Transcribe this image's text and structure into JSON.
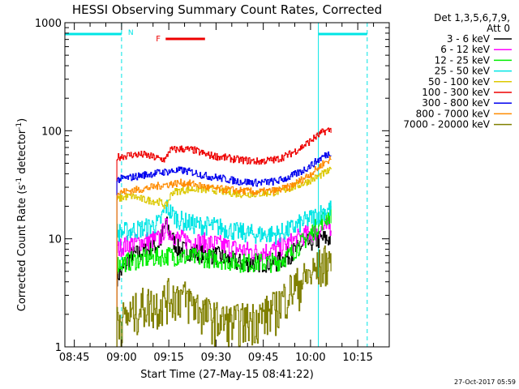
{
  "chart_data": {
    "type": "line",
    "title": "HESSI Observing Summary Count Rates, Corrected",
    "xlabel": "Start Time (27-May-15 08:41:22)",
    "ylabel_main": "Corrected Count Rate (s",
    "ylabel_sup1": "-1",
    "ylabel_mid": " detector",
    "ylabel_sup2": "-1",
    "ylabel_end": ")",
    "yscale": "log",
    "ylim": [
      1,
      1000
    ],
    "xlim_minutes": [
      -3,
      100
    ],
    "x_ticks": [
      {
        "m": 0,
        "label": "08:45"
      },
      {
        "m": 15,
        "label": "09:00"
      },
      {
        "m": 30,
        "label": "09:15"
      },
      {
        "m": 45,
        "label": "09:30"
      },
      {
        "m": 60,
        "label": "09:45"
      },
      {
        "m": 75,
        "label": "10:00"
      },
      {
        "m": 90,
        "label": "10:15"
      }
    ],
    "y_ticks": [
      {
        "v": 1,
        "label": "1"
      },
      {
        "v": 10,
        "label": "10"
      },
      {
        "v": 100,
        "label": "100"
      },
      {
        "v": 1000,
        "label": "1000"
      }
    ],
    "legend": {
      "header1": "Det 1,3,5,6,7,9,",
      "header2": "Att 0",
      "placement": "right"
    },
    "markers": {
      "night_label": "N",
      "flare_label": "F",
      "night_spans": [
        [
          -3,
          15
        ],
        [
          77.5,
          93
        ]
      ],
      "flare_span": [
        29,
        41.5
      ],
      "night_lines_solid": [
        -3,
        77.5
      ],
      "night_lines_dashed": [
        15,
        93
      ]
    },
    "colors": {
      "cyan": "#00e5e5",
      "flare": "#ee0000"
    },
    "data_start_minute": 13.5,
    "data_end_minute": 81.5,
    "series": [
      {
        "name": "3 - 6 keV",
        "color": "#000000",
        "points": [
          [
            13.5,
            4.5
          ],
          [
            15,
            5
          ],
          [
            18,
            7
          ],
          [
            22,
            7.5
          ],
          [
            27,
            9
          ],
          [
            29,
            14
          ],
          [
            31,
            10
          ],
          [
            33,
            8
          ],
          [
            38,
            7.5
          ],
          [
            45,
            7
          ],
          [
            52,
            6
          ],
          [
            58,
            6
          ],
          [
            64,
            6
          ],
          [
            68,
            7
          ],
          [
            72,
            8.5
          ],
          [
            76,
            9.5
          ],
          [
            79,
            10
          ],
          [
            81.5,
            10
          ]
        ]
      },
      {
        "name": "6 - 12 keV",
        "color": "#ff00ff",
        "points": [
          [
            13.5,
            8
          ],
          [
            15,
            8.5
          ],
          [
            18,
            9
          ],
          [
            22,
            9.5
          ],
          [
            27,
            10
          ],
          [
            29,
            13
          ],
          [
            31,
            11
          ],
          [
            33,
            10
          ],
          [
            38,
            9.5
          ],
          [
            45,
            9
          ],
          [
            52,
            8
          ],
          [
            58,
            7.5
          ],
          [
            64,
            8
          ],
          [
            68,
            9
          ],
          [
            72,
            10.5
          ],
          [
            76,
            11.5
          ],
          [
            79,
            12.5
          ],
          [
            81.5,
            13
          ]
        ]
      },
      {
        "name": "12 - 25 keV",
        "color": "#00ee00",
        "points": [
          [
            13.5,
            5.8
          ],
          [
            15,
            6
          ],
          [
            18,
            6.2
          ],
          [
            22,
            6.5
          ],
          [
            27,
            6.8
          ],
          [
            30,
            7
          ],
          [
            33,
            6.8
          ],
          [
            38,
            6.7
          ],
          [
            45,
            6.5
          ],
          [
            52,
            6
          ],
          [
            58,
            6
          ],
          [
            64,
            6
          ],
          [
            68,
            7
          ],
          [
            72,
            9
          ],
          [
            76,
            12
          ],
          [
            79,
            15
          ],
          [
            81.5,
            17
          ]
        ]
      },
      {
        "name": "25 - 50 keV",
        "color": "#00e5e5",
        "points": [
          [
            13.5,
            11.5
          ],
          [
            15,
            11.5
          ],
          [
            18,
            12
          ],
          [
            22,
            12.5
          ],
          [
            27,
            14
          ],
          [
            29,
            20
          ],
          [
            31,
            17
          ],
          [
            33,
            15
          ],
          [
            38,
            13.5
          ],
          [
            45,
            13
          ],
          [
            52,
            11.5
          ],
          [
            58,
            11
          ],
          [
            64,
            11
          ],
          [
            68,
            12
          ],
          [
            72,
            14
          ],
          [
            76,
            16
          ],
          [
            79,
            18
          ],
          [
            81.5,
            19
          ]
        ]
      },
      {
        "name": "50 - 100 keV",
        "color": "#dcc800",
        "points": [
          [
            13.5,
            23
          ],
          [
            15,
            24
          ],
          [
            18,
            25
          ],
          [
            22,
            23
          ],
          [
            27,
            22
          ],
          [
            29,
            20
          ],
          [
            31,
            27
          ],
          [
            34,
            28
          ],
          [
            38,
            29
          ],
          [
            45,
            28
          ],
          [
            52,
            26
          ],
          [
            58,
            26
          ],
          [
            64,
            27
          ],
          [
            68,
            29
          ],
          [
            72,
            32
          ],
          [
            76,
            36
          ],
          [
            79,
            40
          ],
          [
            81.5,
            43
          ]
        ]
      },
      {
        "name": "100 - 300 keV",
        "color": "#ee0000",
        "points": [
          [
            13.5,
            57
          ],
          [
            15,
            58
          ],
          [
            18,
            60
          ],
          [
            22,
            60
          ],
          [
            27,
            55
          ],
          [
            29,
            54
          ],
          [
            30,
            66
          ],
          [
            34,
            68
          ],
          [
            38,
            66
          ],
          [
            42,
            60
          ],
          [
            45,
            58
          ],
          [
            52,
            54
          ],
          [
            58,
            52
          ],
          [
            64,
            54
          ],
          [
            68,
            60
          ],
          [
            72,
            70
          ],
          [
            76,
            85
          ],
          [
            79,
            98
          ],
          [
            81.5,
            103
          ]
        ]
      },
      {
        "name": "300 - 800 keV",
        "color": "#0000ee",
        "points": [
          [
            13.5,
            35
          ],
          [
            15,
            36
          ],
          [
            18,
            37
          ],
          [
            22,
            39
          ],
          [
            27,
            41
          ],
          [
            30,
            42
          ],
          [
            34,
            43
          ],
          [
            38,
            41
          ],
          [
            42,
            38
          ],
          [
            45,
            37
          ],
          [
            52,
            34
          ],
          [
            58,
            33
          ],
          [
            64,
            34
          ],
          [
            68,
            37
          ],
          [
            72,
            42
          ],
          [
            76,
            50
          ],
          [
            79,
            58
          ],
          [
            81.5,
            63
          ]
        ]
      },
      {
        "name": "800 - 7000 keV",
        "color": "#ff8c00",
        "points": [
          [
            13.5,
            26
          ],
          [
            15,
            27
          ],
          [
            18,
            28
          ],
          [
            22,
            29
          ],
          [
            27,
            31
          ],
          [
            30,
            32
          ],
          [
            34,
            33
          ],
          [
            38,
            32
          ],
          [
            42,
            30
          ],
          [
            45,
            29
          ],
          [
            52,
            28
          ],
          [
            58,
            27
          ],
          [
            64,
            28
          ],
          [
            68,
            30
          ],
          [
            72,
            35
          ],
          [
            76,
            42
          ],
          [
            79,
            50
          ],
          [
            81.5,
            55
          ]
        ]
      },
      {
        "name": "7000 - 20000 keV",
        "color": "#808000",
        "points": [
          [
            13.5,
            2
          ],
          [
            15,
            1.8
          ],
          [
            18,
            2
          ],
          [
            22,
            2.5
          ],
          [
            27,
            2.5
          ],
          [
            30,
            3
          ],
          [
            34,
            3
          ],
          [
            38,
            2.5
          ],
          [
            42,
            2
          ],
          [
            45,
            1.8
          ],
          [
            50,
            1.7
          ],
          [
            56,
            1.8
          ],
          [
            60,
            2
          ],
          [
            64,
            2.3
          ],
          [
            68,
            3.3
          ],
          [
            72,
            4
          ],
          [
            76,
            5
          ],
          [
            79,
            6
          ],
          [
            81.5,
            6.5
          ]
        ]
      }
    ]
  },
  "footer": {
    "timestamp": "27-Oct-2017 05:59"
  }
}
